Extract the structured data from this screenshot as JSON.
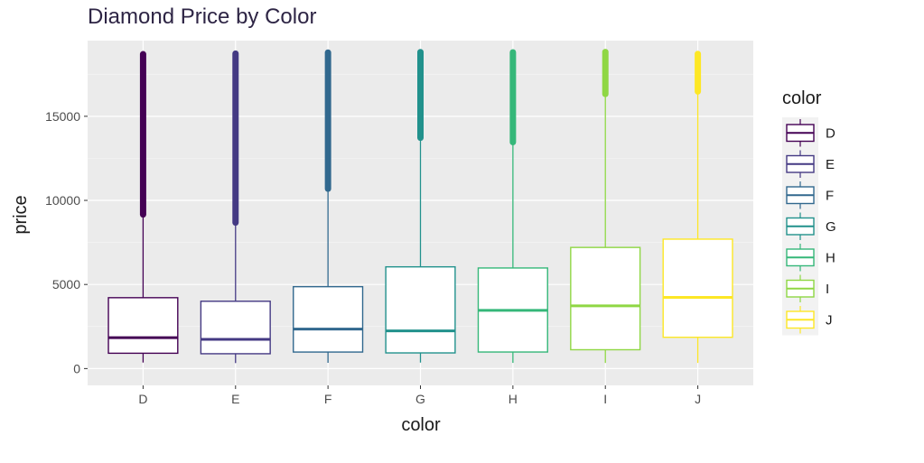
{
  "chart_data": {
    "type": "boxplot",
    "title": "Diamond Price by Color",
    "xlabel": "color",
    "ylabel": "price",
    "categories": [
      "D",
      "E",
      "F",
      "G",
      "H",
      "I",
      "J"
    ],
    "ylim": [
      -1000,
      19500
    ],
    "yticks": [
      0,
      5000,
      10000,
      15000
    ],
    "grid": true,
    "legend": {
      "title": "color",
      "position": "right",
      "entries": [
        "D",
        "E",
        "F",
        "G",
        "H",
        "I",
        "J"
      ]
    },
    "colors": [
      "#440154",
      "#443983",
      "#31688e",
      "#21918c",
      "#35b779",
      "#8fd744",
      "#fde725"
    ],
    "boxes": [
      {
        "category": "D",
        "min": 357,
        "q1": 911,
        "median": 1838,
        "q3": 4214,
        "whisker_high": 9160,
        "outliers_low": 9160,
        "outliers_high": 18693
      },
      {
        "category": "E",
        "min": 326,
        "q1": 882,
        "median": 1739,
        "q3": 4003,
        "whisker_high": 8679,
        "outliers_low": 8679,
        "outliers_high": 18731
      },
      {
        "category": "F",
        "min": 342,
        "q1": 982,
        "median": 2344,
        "q3": 4868,
        "whisker_high": 10691,
        "outliers_low": 10691,
        "outliers_high": 18791
      },
      {
        "category": "G",
        "min": 354,
        "q1": 931,
        "median": 2242,
        "q3": 6048,
        "whisker_high": 13721,
        "outliers_low": 13721,
        "outliers_high": 18818
      },
      {
        "category": "H",
        "min": 337,
        "q1": 984,
        "median": 3460,
        "q3": 5980,
        "whisker_high": 13464,
        "outliers_low": 13464,
        "outliers_high": 18803
      },
      {
        "category": "I",
        "min": 334,
        "q1": 1120,
        "median": 3730,
        "q3": 7202,
        "whisker_high": 16327,
        "outliers_low": 16327,
        "outliers_high": 18823
      },
      {
        "category": "J",
        "min": 335,
        "q1": 1860,
        "median": 4234,
        "q3": 7695,
        "whisker_high": 16472,
        "outliers_low": 16472,
        "outliers_high": 18710
      }
    ]
  }
}
